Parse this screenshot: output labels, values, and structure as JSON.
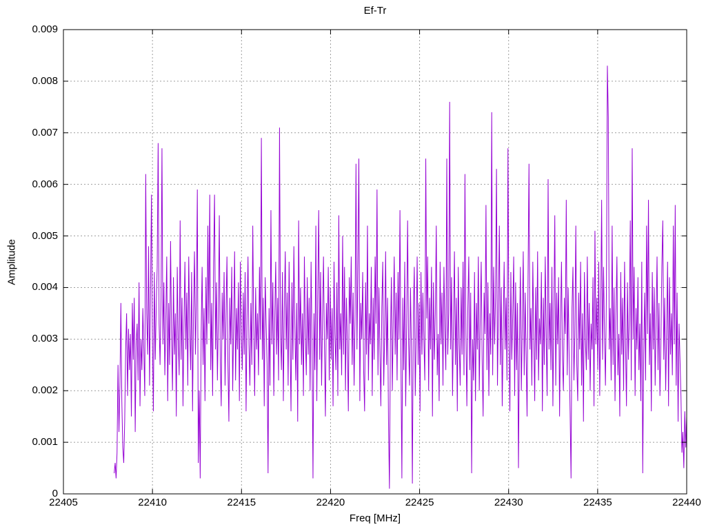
{
  "figure": {
    "title": "Ef-Tr",
    "xlabel": "Freq [MHz]",
    "ylabel": "Amplitude",
    "background_color": "#ffffff",
    "border_color": "#000000",
    "grid_color": "#9c9c9c",
    "text_color": "#000000",
    "line_color": "#9400d3"
  },
  "chart_data": {
    "type": "line",
    "title": "Ef-Tr",
    "xlabel": "Freq [MHz]",
    "ylabel": "Amplitude",
    "xlim": [
      22405,
      22440
    ],
    "ylim": [
      0,
      0.009
    ],
    "xticks": [
      22405,
      22410,
      22415,
      22420,
      22425,
      22430,
      22435,
      22440
    ],
    "xtick_labels": [
      "22405",
      "22410",
      "22415",
      "22420",
      "22425",
      "22430",
      "22435",
      "22440"
    ],
    "yticks": [
      0,
      0.001,
      0.002,
      0.003,
      0.004,
      0.005,
      0.006,
      0.007,
      0.008,
      0.009
    ],
    "ytick_labels": [
      "0",
      "0.001",
      "0.002",
      "0.003",
      "0.004",
      "0.005",
      "0.006",
      "0.007",
      "0.008",
      "0.009"
    ],
    "grid": true,
    "legend": "none",
    "notable_peaks": [
      {
        "x": 22435.5,
        "y": 0.0083
      },
      {
        "x": 22426.7,
        "y": 0.0076
      },
      {
        "x": 22429.0,
        "y": 0.0074
      },
      {
        "x": 22417.2,
        "y": 0.0071
      },
      {
        "x": 22416.2,
        "y": 0.0069
      },
      {
        "x": 22410.3,
        "y": 0.0068
      },
      {
        "x": 22436.9,
        "y": 0.0067
      },
      {
        "x": 22430.0,
        "y": 0.0067
      }
    ],
    "series": [
      {
        "name": "Ef-Tr",
        "color": "#9400d3",
        "x_start": 22407.85,
        "x_end": 22440.0,
        "value_scale": 0.0001,
        "values": [
          4,
          6,
          3,
          8,
          25,
          12,
          21,
          37,
          18,
          9,
          6,
          14,
          28,
          35,
          19,
          32,
          24,
          31,
          15,
          37,
          26,
          38,
          12,
          29,
          33,
          22,
          41,
          17,
          30,
          24,
          36,
          28,
          19,
          62,
          35,
          27,
          48,
          21,
          39,
          58,
          30,
          16,
          43,
          26,
          36,
          44,
          68,
          33,
          25,
          38,
          67,
          29,
          41,
          23,
          34,
          46,
          18,
          37,
          25,
          49,
          31,
          20,
          42,
          27,
          35,
          15,
          44,
          30,
          23,
          53,
          26,
          38,
          17,
          33,
          45,
          28,
          39,
          21,
          46,
          32,
          24,
          43,
          16,
          35,
          47,
          27,
          38,
          59,
          6,
          20,
          3,
          31,
          44,
          25,
          36,
          18,
          42,
          29,
          52,
          33,
          58,
          24,
          37,
          19,
          45,
          58,
          28,
          41,
          22,
          34,
          54,
          26,
          17,
          39,
          30,
          43,
          21,
          35,
          46,
          25,
          14,
          38,
          29,
          44,
          20,
          33,
          47,
          22,
          36,
          28,
          41,
          18,
          45,
          31,
          24,
          39,
          27,
          43,
          16,
          34,
          46,
          29,
          21,
          37,
          25,
          52,
          32,
          19,
          40,
          28,
          35,
          23,
          44,
          30,
          69,
          26,
          38,
          17,
          42,
          33,
          25,
          4,
          36,
          21,
          55,
          29,
          41,
          19,
          34,
          45,
          27,
          38,
          22,
          71,
          31,
          24,
          43,
          18,
          36,
          47,
          28,
          39,
          21,
          45,
          30,
          16,
          41,
          26,
          48,
          33,
          22,
          37,
          14,
          53,
          29,
          40,
          25,
          35,
          19,
          46,
          31,
          23,
          42,
          27,
          38,
          20,
          45,
          29,
          3,
          35,
          24,
          52,
          18,
          39,
          55,
          26,
          43,
          21,
          34,
          46,
          28,
          15,
          37,
          30,
          44,
          22,
          40,
          26,
          36,
          17,
          45,
          31,
          24,
          41,
          19,
          54,
          28,
          35,
          23,
          50,
          27,
          44,
          20,
          38,
          29,
          16,
          42,
          33,
          46,
          25,
          39,
          21,
          34,
          64,
          28,
          45,
          65,
          18,
          37,
          30,
          43,
          24,
          16,
          41,
          27,
          52,
          22,
          35,
          29,
          44,
          19,
          38,
          26,
          46,
          33,
          59,
          23,
          40,
          28,
          17,
          36,
          45,
          21,
          31,
          47,
          25,
          38,
          14,
          1,
          29,
          42,
          20,
          34,
          46,
          27,
          39,
          22,
          43,
          30,
          55,
          26,
          3,
          38,
          24,
          45,
          17,
          33,
          53,
          29,
          21,
          40,
          28,
          2,
          35,
          44,
          19,
          31,
          46,
          25,
          37,
          16,
          43,
          27,
          39,
          30,
          22,
          65,
          34,
          46,
          20,
          38,
          28,
          44,
          15,
          41,
          26,
          35,
          52,
          23,
          31,
          18,
          45,
          29,
          39,
          21,
          44,
          32,
          24,
          65,
          27,
          35,
          76,
          28,
          42,
          19,
          33,
          47,
          25,
          38,
          16,
          44,
          29,
          21,
          40,
          27,
          45,
          23,
          62,
          31,
          17,
          36,
          46,
          24,
          39,
          4,
          30,
          22,
          43,
          18,
          37,
          28,
          46,
          20,
          34,
          45,
          26,
          15,
          39,
          31,
          56,
          24,
          41,
          19,
          35,
          27,
          74,
          23,
          44,
          29,
          38,
          63,
          21,
          36,
          52,
          25,
          40,
          17,
          32,
          45,
          28,
          38,
          22,
          67,
          30,
          16,
          43,
          26,
          35,
          46,
          19,
          41,
          24,
          37,
          5,
          29,
          44,
          20,
          33,
          47,
          23,
          39,
          27,
          15,
          42,
          64,
          28,
          36,
          21,
          45,
          31,
          18,
          40,
          26,
          47,
          22,
          34,
          29,
          43,
          16,
          38,
          25,
          46,
          30,
          19,
          61,
          28,
          37,
          24,
          44,
          17,
          35,
          54,
          21,
          39,
          29,
          42,
          15,
          33,
          45,
          26,
          20,
          38,
          31,
          57,
          23,
          40,
          27,
          16,
          3,
          36,
          44,
          22,
          31,
          52,
          25,
          18,
          39,
          28,
          45,
          21,
          35,
          14,
          43,
          30,
          24,
          46,
          26,
          37,
          20,
          33,
          28,
          42,
          17,
          51,
          29,
          38,
          24,
          45,
          19,
          34,
          57,
          26,
          44,
          31,
          21,
          39,
          83,
          73,
          28,
          36,
          22,
          52,
          25,
          40,
          18,
          35,
          46,
          23,
          31,
          15,
          43,
          27,
          38,
          20,
          45,
          29,
          17,
          41,
          26,
          34,
          53,
          22,
          67,
          30,
          44,
          19,
          36,
          28,
          42,
          24,
          33,
          18,
          45,
          4,
          27,
          39,
          22,
          52,
          31,
          57,
          25,
          35,
          16,
          43,
          28,
          40,
          21,
          34,
          46,
          24,
          37,
          19,
          29,
          44,
          53,
          26,
          38,
          20,
          31,
          45,
          17,
          42,
          27,
          35,
          23,
          52,
          29,
          56,
          21,
          39,
          14,
          33,
          26,
          19,
          8,
          12,
          5,
          16,
          9,
          15
        ]
      }
    ]
  }
}
